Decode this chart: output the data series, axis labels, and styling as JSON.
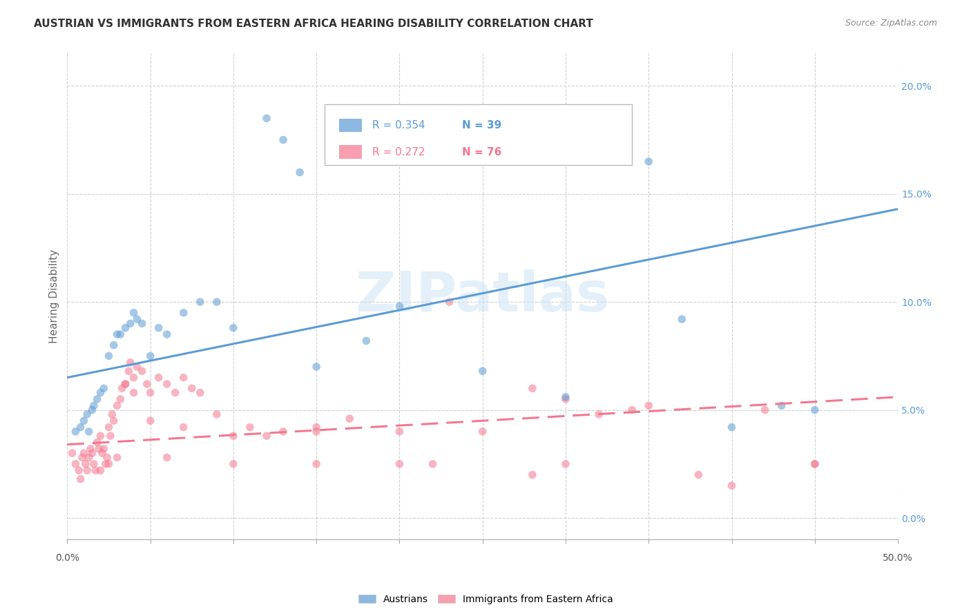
{
  "title": "AUSTRIAN VS IMMIGRANTS FROM EASTERN AFRICA HEARING DISABILITY CORRELATION CHART",
  "source": "Source: ZipAtlas.com",
  "ylabel": "Hearing Disability",
  "xlim": [
    0.0,
    0.5
  ],
  "ylim": [
    -0.01,
    0.215
  ],
  "xticks_minor": [
    0.0,
    0.05,
    0.1,
    0.15,
    0.2,
    0.25,
    0.3,
    0.35,
    0.4,
    0.45,
    0.5
  ],
  "xticks_label": [
    0.0,
    0.5
  ],
  "yticks_right": [
    0.0,
    0.05,
    0.1,
    0.15,
    0.2
  ],
  "grid_color": "#d0d0d0",
  "background_color": "#ffffff",
  "legend_labels": [
    "Austrians",
    "Immigrants from Eastern Africa"
  ],
  "legend_r": [
    "R = 0.354",
    "R = 0.272"
  ],
  "legend_n": [
    "N = 39",
    "N = 76"
  ],
  "color_blue": "#5b9bd5",
  "color_pink": "#f4778f",
  "color_blue_dark": "#4472c4",
  "color_pink_dark": "#e05c78",
  "watermark": "ZIPatlas",
  "blue_scatter_x": [
    0.005,
    0.008,
    0.01,
    0.012,
    0.013,
    0.015,
    0.016,
    0.018,
    0.02,
    0.022,
    0.025,
    0.028,
    0.03,
    0.032,
    0.035,
    0.038,
    0.04,
    0.042,
    0.045,
    0.05,
    0.055,
    0.06,
    0.07,
    0.08,
    0.09,
    0.1,
    0.12,
    0.13,
    0.14,
    0.15,
    0.18,
    0.2,
    0.25,
    0.3,
    0.35,
    0.37,
    0.4,
    0.43,
    0.45
  ],
  "blue_scatter_y": [
    0.04,
    0.042,
    0.045,
    0.048,
    0.04,
    0.05,
    0.052,
    0.055,
    0.058,
    0.06,
    0.075,
    0.08,
    0.085,
    0.085,
    0.088,
    0.09,
    0.095,
    0.092,
    0.09,
    0.075,
    0.088,
    0.085,
    0.095,
    0.1,
    0.1,
    0.088,
    0.185,
    0.175,
    0.16,
    0.07,
    0.082,
    0.098,
    0.068,
    0.056,
    0.165,
    0.092,
    0.042,
    0.052,
    0.05
  ],
  "pink_scatter_x": [
    0.003,
    0.005,
    0.007,
    0.008,
    0.009,
    0.01,
    0.011,
    0.012,
    0.013,
    0.014,
    0.015,
    0.016,
    0.017,
    0.018,
    0.019,
    0.02,
    0.021,
    0.022,
    0.023,
    0.024,
    0.025,
    0.026,
    0.027,
    0.028,
    0.03,
    0.032,
    0.033,
    0.035,
    0.037,
    0.038,
    0.04,
    0.042,
    0.045,
    0.048,
    0.05,
    0.055,
    0.06,
    0.065,
    0.07,
    0.075,
    0.08,
    0.09,
    0.1,
    0.11,
    0.12,
    0.13,
    0.15,
    0.17,
    0.2,
    0.23,
    0.25,
    0.28,
    0.3,
    0.32,
    0.34,
    0.38,
    0.42,
    0.45,
    0.02,
    0.025,
    0.03,
    0.035,
    0.04,
    0.05,
    0.06,
    0.07,
    0.1,
    0.15,
    0.2,
    0.28,
    0.35,
    0.4,
    0.15,
    0.22,
    0.3,
    0.45
  ],
  "pink_scatter_y": [
    0.03,
    0.025,
    0.022,
    0.018,
    0.028,
    0.03,
    0.025,
    0.022,
    0.028,
    0.032,
    0.03,
    0.025,
    0.022,
    0.035,
    0.032,
    0.038,
    0.03,
    0.032,
    0.025,
    0.028,
    0.042,
    0.038,
    0.048,
    0.045,
    0.052,
    0.055,
    0.06,
    0.062,
    0.068,
    0.072,
    0.065,
    0.07,
    0.068,
    0.062,
    0.058,
    0.065,
    0.062,
    0.058,
    0.065,
    0.06,
    0.058,
    0.048,
    0.038,
    0.042,
    0.038,
    0.04,
    0.042,
    0.046,
    0.04,
    0.1,
    0.04,
    0.06,
    0.055,
    0.048,
    0.05,
    0.02,
    0.05,
    0.025,
    0.022,
    0.025,
    0.028,
    0.062,
    0.058,
    0.045,
    0.028,
    0.042,
    0.025,
    0.04,
    0.025,
    0.02,
    0.052,
    0.015,
    0.025,
    0.025,
    0.025,
    0.025
  ],
  "blue_line_x": [
    0.0,
    0.5
  ],
  "blue_line_y": [
    0.065,
    0.143
  ],
  "pink_line_x": [
    0.0,
    0.5
  ],
  "pink_line_y": [
    0.034,
    0.056
  ]
}
